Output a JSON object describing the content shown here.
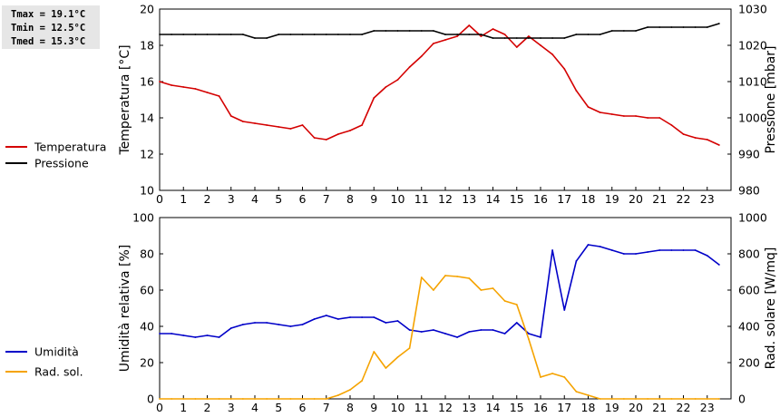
{
  "stats": {
    "tmax": "Tmax = 19.1°C",
    "tmin": "Tmin = 12.5°C",
    "tmed": "Tmed = 15.3°C"
  },
  "chart_data": [
    {
      "type": "line",
      "ylabel": "Temperatura [°C]",
      "y2label": "Pressione [mbar]",
      "xlim": [
        0,
        24
      ],
      "ylim": [
        10,
        20
      ],
      "y2lim": [
        980,
        1030
      ],
      "xticks": [
        0,
        1,
        2,
        3,
        4,
        5,
        6,
        7,
        8,
        9,
        10,
        11,
        12,
        13,
        14,
        15,
        16,
        17,
        18,
        19,
        20,
        21,
        22,
        23
      ],
      "yticks": [
        10,
        12,
        14,
        16,
        18,
        20
      ],
      "y2ticks": [
        980,
        990,
        1000,
        1010,
        1020,
        1030
      ],
      "grid": false,
      "legend_position": "left",
      "series": [
        {
          "name": "Temperatura",
          "axis": "left",
          "color": "#d40000",
          "x": [
            0,
            0.5,
            1,
            1.5,
            2,
            2.5,
            3,
            3.5,
            4,
            4.5,
            5,
            5.5,
            6,
            6.5,
            7,
            7.5,
            8,
            8.5,
            9,
            9.5,
            10,
            10.5,
            11,
            11.5,
            12,
            12.5,
            13,
            13.5,
            14,
            14.5,
            15,
            15.5,
            16,
            16.5,
            17,
            17.5,
            18,
            18.5,
            19,
            19.5,
            20,
            20.5,
            21,
            21.5,
            22,
            22.5,
            23,
            23.5
          ],
          "y": [
            16.0,
            15.8,
            15.7,
            15.6,
            15.4,
            15.2,
            14.1,
            13.8,
            13.7,
            13.6,
            13.5,
            13.4,
            13.6,
            12.9,
            12.8,
            13.1,
            13.3,
            13.6,
            15.1,
            15.7,
            16.1,
            16.8,
            17.4,
            18.1,
            18.3,
            18.5,
            19.1,
            18.5,
            18.9,
            18.6,
            17.9,
            18.5,
            18.0,
            17.5,
            16.7,
            15.5,
            14.6,
            14.3,
            14.2,
            14.1,
            14.1,
            14.0,
            14.0,
            13.6,
            13.1,
            12.9,
            12.8,
            12.5
          ]
        },
        {
          "name": "Pressione",
          "axis": "right",
          "color": "#000000",
          "x": [
            0,
            0.5,
            1,
            1.5,
            2,
            2.5,
            3,
            3.5,
            4,
            4.5,
            5,
            5.5,
            6,
            6.5,
            7,
            7.5,
            8,
            8.5,
            9,
            9.5,
            10,
            10.5,
            11,
            11.5,
            12,
            12.5,
            13,
            13.5,
            14,
            14.5,
            15,
            15.5,
            16,
            16.5,
            17,
            17.5,
            18,
            18.5,
            19,
            19.5,
            20,
            20.5,
            21,
            21.5,
            22,
            22.5,
            23,
            23.5
          ],
          "y": [
            1023,
            1023,
            1023,
            1023,
            1023,
            1023,
            1023,
            1023,
            1022,
            1022,
            1023,
            1023,
            1023,
            1023,
            1023,
            1023,
            1023,
            1023,
            1024,
            1024,
            1024,
            1024,
            1024,
            1024,
            1023,
            1023,
            1023,
            1023,
            1022,
            1022,
            1022,
            1022,
            1022,
            1022,
            1022,
            1023,
            1023,
            1023,
            1024,
            1024,
            1024,
            1025,
            1025,
            1025,
            1025,
            1025,
            1025,
            1026
          ]
        }
      ]
    },
    {
      "type": "line",
      "ylabel": "Umidità relativa [%]",
      "y2label": "Rad. solare [W/mq]",
      "xlim": [
        0,
        24
      ],
      "ylim": [
        0,
        100
      ],
      "y2lim": [
        0,
        1000
      ],
      "xticks": [
        0,
        1,
        2,
        3,
        4,
        5,
        6,
        7,
        8,
        9,
        10,
        11,
        12,
        13,
        14,
        15,
        16,
        17,
        18,
        19,
        20,
        21,
        22,
        23
      ],
      "yticks": [
        0,
        20,
        40,
        60,
        80,
        100
      ],
      "y2ticks": [
        0,
        200,
        400,
        600,
        800,
        1000
      ],
      "grid": false,
      "legend_position": "left",
      "series": [
        {
          "name": "Umidità",
          "axis": "left",
          "color": "#0000c8",
          "x": [
            0,
            0.5,
            1,
            1.5,
            2,
            2.5,
            3,
            3.5,
            4,
            4.5,
            5,
            5.5,
            6,
            6.5,
            7,
            7.5,
            8,
            8.5,
            9,
            9.5,
            10,
            10.5,
            11,
            11.5,
            12,
            12.5,
            13,
            13.5,
            14,
            14.5,
            15,
            15.5,
            16,
            16.5,
            17,
            17.5,
            18,
            18.5,
            19,
            19.5,
            20,
            20.5,
            21,
            21.5,
            22,
            22.5,
            23,
            23.5
          ],
          "y": [
            36,
            36,
            35,
            34,
            35,
            34,
            39,
            41,
            42,
            42,
            41,
            40,
            41,
            44,
            46,
            44,
            45,
            45,
            45,
            42,
            43,
            38,
            37,
            38,
            36,
            34,
            37,
            38,
            38,
            36,
            42,
            36,
            34,
            82,
            49,
            76,
            85,
            84,
            82,
            80,
            80,
            81,
            82,
            82,
            82,
            82,
            79,
            74
          ]
        },
        {
          "name": "Rad. sol.",
          "axis": "right",
          "color": "#f5a300",
          "x": [
            0,
            0.5,
            1,
            1.5,
            2,
            2.5,
            3,
            3.5,
            4,
            4.5,
            5,
            5.5,
            6,
            6.5,
            7,
            7.5,
            8,
            8.5,
            9,
            9.5,
            10,
            10.5,
            11,
            11.5,
            12,
            12.5,
            13,
            13.5,
            14,
            14.5,
            15,
            15.5,
            16,
            16.5,
            17,
            17.5,
            18,
            18.5,
            19,
            19.5,
            20,
            20.5,
            21,
            21.5,
            22,
            22.5,
            23,
            23.5
          ],
          "y": [
            0,
            0,
            0,
            0,
            0,
            0,
            0,
            0,
            0,
            0,
            0,
            0,
            0,
            0,
            0,
            20,
            50,
            100,
            260,
            170,
            230,
            280,
            670,
            600,
            680,
            675,
            665,
            600,
            610,
            540,
            520,
            330,
            120,
            140,
            120,
            40,
            20,
            0,
            0,
            0,
            0,
            0,
            0,
            0,
            0,
            0,
            0,
            0
          ]
        }
      ]
    }
  ]
}
